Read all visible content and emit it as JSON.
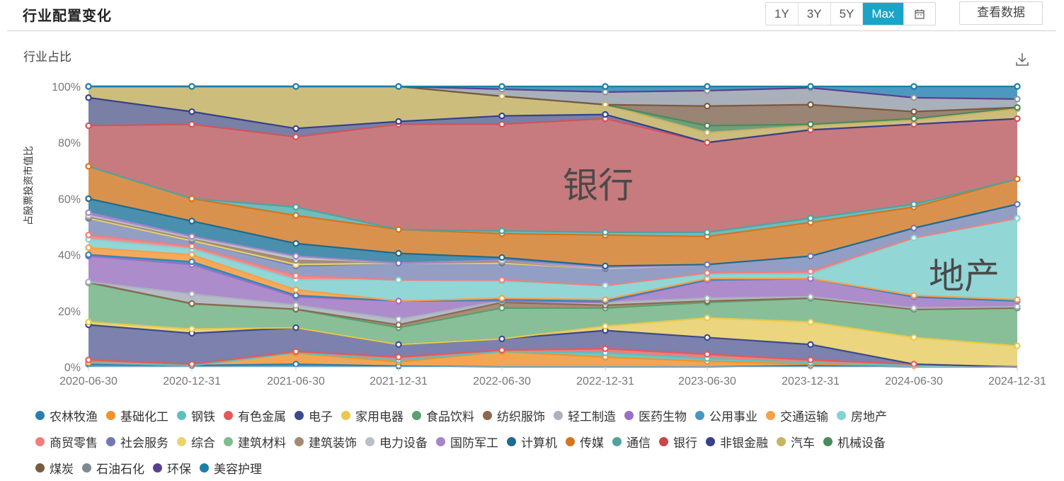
{
  "header": {
    "title": "行业配置变化",
    "range_buttons": [
      "1Y",
      "3Y",
      "5Y",
      "Max"
    ],
    "active_range": "Max",
    "calendar_icon": "calendar-icon",
    "view_data_label": "查看数据"
  },
  "chart_header": {
    "subtitle": "行业占比",
    "download_icon": "download-icon"
  },
  "annotations": {
    "bank": "银行",
    "real_estate": "地产"
  },
  "chart_data": {
    "type": "area",
    "stacked": true,
    "title": "行业占比",
    "xlabel": "",
    "ylabel": "占股票投资市值比",
    "ylim": [
      0,
      100
    ],
    "y_ticks": [
      "0%",
      "20%",
      "40%",
      "60%",
      "80%",
      "100%"
    ],
    "grid": false,
    "legend_position": "bottom",
    "categories": [
      "2020-06-30",
      "2020-12-31",
      "2021-06-30",
      "2021-12-31",
      "2022-06-30",
      "2022-12-31",
      "2023-06-30",
      "2023-12-31",
      "2024-06-30",
      "2024-12-31"
    ],
    "series": [
      {
        "name": "农林牧渔",
        "color": "#2b7fae",
        "values": [
          1.0,
          0.5,
          1.0,
          0.3,
          0.0,
          0.0,
          0.0,
          0.5,
          0.0,
          0.0
        ]
      },
      {
        "name": "基础化工",
        "color": "#f0922c",
        "values": [
          0.5,
          0.0,
          4.0,
          1.5,
          5.5,
          3.5,
          2.0,
          0.5,
          0.5,
          0.0
        ]
      },
      {
        "name": "钢铁",
        "color": "#5dbfc0",
        "values": [
          0.0,
          0.0,
          0.0,
          0.5,
          0.0,
          1.5,
          1.0,
          0.5,
          0.0,
          0.0
        ]
      },
      {
        "name": "有色金属",
        "color": "#e25a5a",
        "values": [
          1.0,
          0.5,
          0.5,
          1.2,
          0.5,
          1.5,
          1.5,
          1.0,
          0.5,
          0.0
        ]
      },
      {
        "name": "电子",
        "color": "#3c4a8a",
        "values": [
          12.0,
          11.0,
          8.5,
          4.5,
          4.0,
          6.5,
          6.0,
          5.5,
          0.0,
          0.0
        ]
      },
      {
        "name": "家用电器",
        "color": "#e8c94a",
        "values": [
          1.0,
          1.5,
          0.0,
          0.0,
          0.0,
          1.5,
          7.0,
          8.0,
          9.5,
          7.5
        ]
      },
      {
        "name": "食品饮料",
        "color": "#5aa06e",
        "values": [
          0.0,
          0.0,
          0.0,
          0.0,
          0.0,
          0.0,
          0.0,
          0.0,
          0.0,
          0.0
        ]
      },
      {
        "name": "纺织服饰",
        "color": "#8b6a4f",
        "values": [
          0.0,
          0.0,
          0.0,
          0.0,
          0.0,
          0.0,
          0.0,
          0.0,
          0.0,
          0.0
        ]
      },
      {
        "name": "轻工制造",
        "color": "#a9b2be",
        "values": [
          0.0,
          0.0,
          0.0,
          0.0,
          0.0,
          0.0,
          0.0,
          0.0,
          0.0,
          0.0
        ]
      },
      {
        "name": "医药生物",
        "color": "#9c6fc4",
        "values": [
          0.0,
          0.0,
          0.0,
          0.0,
          0.0,
          0.0,
          0.0,
          0.0,
          0.0,
          0.0
        ]
      },
      {
        "name": "公用事业",
        "color": "#4a95c2",
        "values": [
          0.0,
          0.0,
          0.0,
          0.0,
          0.0,
          0.0,
          0.0,
          0.0,
          0.0,
          0.0
        ]
      },
      {
        "name": "交通运输",
        "color": "#f5a04a",
        "values": [
          0.0,
          0.0,
          0.0,
          0.0,
          0.0,
          0.0,
          0.0,
          0.0,
          0.0,
          0.0
        ]
      },
      {
        "name": "房地产",
        "color": "#84d2d4",
        "values": [
          0.0,
          0.0,
          0.0,
          0.0,
          0.0,
          0.0,
          0.0,
          0.0,
          0.0,
          0.0
        ]
      },
      {
        "name": "商贸零售",
        "color": "#ee7f7f",
        "values": [
          0.0,
          0.0,
          0.0,
          0.0,
          0.0,
          0.0,
          0.0,
          0.0,
          0.0,
          0.0
        ]
      },
      {
        "name": "社会服务",
        "color": "#7078b0",
        "values": [
          0.0,
          0.0,
          0.0,
          0.0,
          0.0,
          0.0,
          0.0,
          0.0,
          0.0,
          0.0
        ]
      },
      {
        "name": "综合",
        "color": "#e9d36c",
        "values": [
          0.0,
          0.0,
          0.0,
          0.0,
          0.0,
          0.0,
          0.0,
          0.0,
          0.0,
          0.0
        ]
      },
      {
        "name": "建筑材料",
        "color": "#7fbc8e",
        "values": [
          14.0,
          9.0,
          6.5,
          6.0,
          11.0,
          6.5,
          5.5,
          9.0,
          10.5,
          13.5
        ]
      },
      {
        "name": "建筑装饰",
        "color": "#a38a73",
        "values": [
          0.5,
          0.0,
          0.0,
          1.0,
          2.0,
          1.0,
          0.5,
          0.0,
          0.0,
          0.0
        ]
      },
      {
        "name": "电力设备",
        "color": "#b8c0ca",
        "values": [
          0.0,
          3.5,
          1.5,
          2.0,
          0.5,
          1.0,
          1.0,
          0.5,
          0.5,
          0.5
        ]
      },
      {
        "name": "国防军工",
        "color": "#a685c8",
        "values": [
          9.5,
          10.5,
          3.0,
          6.5,
          0.0,
          0.0,
          6.5,
          6.5,
          4.0,
          2.0
        ]
      },
      {
        "name": "计算机",
        "color": "#1f6a8e",
        "values": [
          0.5,
          0.5,
          1.0,
          0.0,
          0.0,
          0.0,
          0.0,
          0.0,
          0.0,
          0.0
        ]
      },
      {
        "name": "传媒",
        "color": "#d4741f",
        "values": [
          2.5,
          2.5,
          1.5,
          0.0,
          1.0,
          1.0,
          0.5,
          0.5,
          1.0,
          0.5
        ]
      },
      {
        "name": "通信",
        "color": "#4fa3a0",
        "values": [
          0.0,
          0.0,
          0.0,
          0.0,
          0.0,
          0.0,
          0.0,
          0.0,
          0.0,
          0.0
        ]
      },
      {
        "name": "银行",
        "color": "#c7797c",
        "values": [
          0.0,
          0.0,
          0.0,
          0.0,
          0.0,
          0.0,
          0.0,
          0.0,
          0.0,
          0.0
        ]
      },
      {
        "name": "非银金融",
        "color": "#35418a",
        "values": [
          0.0,
          0.0,
          0.0,
          0.0,
          0.0,
          0.0,
          0.0,
          0.0,
          0.0,
          0.0
        ]
      },
      {
        "name": "汽车",
        "color": "#c9b364",
        "values": [
          0.0,
          0.0,
          0.0,
          0.0,
          0.0,
          0.0,
          0.0,
          0.0,
          0.0,
          0.0
        ]
      },
      {
        "name": "机械设备",
        "color": "#4a8a5c",
        "values": [
          0.0,
          0.0,
          0.0,
          0.0,
          0.0,
          0.0,
          0.0,
          0.0,
          0.0,
          0.0
        ]
      },
      {
        "name": "煤炭",
        "color": "#7a5a3e",
        "values": [
          0.0,
          0.0,
          0.0,
          0.0,
          0.0,
          0.0,
          0.0,
          0.0,
          0.0,
          0.0
        ]
      },
      {
        "name": "石油石化",
        "color": "#7e8a90",
        "values": [
          0.0,
          0.0,
          0.0,
          0.0,
          0.0,
          0.0,
          0.0,
          0.0,
          0.0,
          0.0
        ]
      },
      {
        "name": "环保",
        "color": "#5b3f8f",
        "values": [
          0.0,
          0.0,
          0.0,
          0.0,
          0.0,
          0.0,
          0.0,
          0.0,
          0.0,
          0.0
        ]
      },
      {
        "name": "美容护理",
        "color": "#1d7fa8",
        "values": [
          0.0,
          0.0,
          0.0,
          0.0,
          0.0,
          0.0,
          0.0,
          0.0,
          0.0,
          0.0
        ]
      }
    ],
    "visual_layers": [
      {
        "name": "农林牧渔",
        "fill": "#4b9ac0",
        "line": "#2b7fae",
        "top": [
          1.0,
          0.5,
          1.0,
          0.3,
          0.0,
          0.0,
          0.0,
          0.5,
          0.0,
          0.0
        ]
      },
      {
        "name": "基础化工",
        "fill": "#f4a553",
        "line": "#f0922c",
        "top": [
          1.5,
          0.5,
          5.0,
          1.8,
          5.5,
          3.5,
          2.0,
          1.0,
          0.5,
          0.0
        ]
      },
      {
        "name": "钢铁",
        "fill": "#6ec7c6",
        "line": "#5dbfc0",
        "top": [
          1.5,
          0.5,
          5.0,
          2.5,
          5.5,
          5.0,
          3.0,
          1.5,
          0.5,
          0.0
        ]
      },
      {
        "name": "有色金属",
        "fill": "#e98080",
        "line": "#e25a5a",
        "top": [
          2.5,
          1.0,
          5.5,
          3.5,
          6.0,
          6.5,
          4.5,
          2.5,
          1.0,
          0.0
        ]
      },
      {
        "name": "电子",
        "fill": "#7c81ad",
        "line": "#3c4a8a",
        "top": [
          15.0,
          12.0,
          14.0,
          8.0,
          10.0,
          13.0,
          10.5,
          8.0,
          1.0,
          0.0
        ]
      },
      {
        "name": "家用电器",
        "fill": "#ebd57f",
        "line": "#e8c94a",
        "top": [
          16.0,
          13.5,
          14.0,
          8.0,
          10.0,
          14.5,
          17.5,
          16.0,
          10.5,
          7.5
        ]
      },
      {
        "name": "建筑材料",
        "fill": "#88bf98",
        "line": "#5aa06e",
        "top": [
          30.0,
          22.5,
          20.5,
          14.0,
          21.0,
          21.0,
          23.0,
          24.5,
          20.5,
          21.0
        ]
      },
      {
        "name": "建筑装饰",
        "fill": "#a88e79",
        "line": "#8b6a4f",
        "top": [
          30.2,
          22.6,
          20.6,
          15.0,
          23.0,
          22.0,
          23.5,
          24.5,
          20.5,
          21.0
        ]
      },
      {
        "name": "电力设备",
        "fill": "#b5bcc6",
        "line": "#a9b2be",
        "top": [
          30.3,
          26.0,
          22.0,
          17.0,
          23.5,
          23.0,
          24.5,
          25.0,
          21.0,
          21.5
        ]
      },
      {
        "name": "医药生物",
        "fill": "#ad8ccb",
        "line": "#9c6fc4",
        "top": [
          39.5,
          36.5,
          25.0,
          23.5,
          23.5,
          23.0,
          31.0,
          31.5,
          25.0,
          23.5
        ]
      },
      {
        "name": "公用事业",
        "fill": "#4a95c2",
        "line": "#2f86b8",
        "top": [
          40.0,
          37.5,
          25.5,
          23.5,
          24.0,
          23.5,
          31.0,
          31.5,
          25.0,
          23.5
        ]
      },
      {
        "name": "交通运输",
        "fill": "#f6a95c",
        "line": "#f5a04a",
        "top": [
          42.5,
          40.0,
          27.5,
          23.5,
          24.5,
          24.0,
          31.5,
          31.5,
          25.5,
          24.0
        ]
      },
      {
        "name": "房地产",
        "fill": "#93d6d6",
        "line": "#84d2d4",
        "top": [
          45.5,
          42.0,
          31.0,
          31.0,
          30.5,
          29.0,
          33.0,
          33.0,
          46.0,
          53.0
        ]
      },
      {
        "name": "商贸零售",
        "fill": "#ee8f8f",
        "line": "#ee7f7f",
        "top": [
          47.0,
          43.0,
          32.5,
          31.0,
          31.0,
          29.0,
          33.5,
          34.0,
          46.0,
          53.0
        ]
      },
      {
        "name": "社会服务",
        "fill": "#939ec4",
        "line": "#7078b0",
        "top": [
          53.0,
          45.0,
          36.0,
          37.0,
          37.0,
          35.0,
          36.5,
          39.5,
          49.5,
          58.0
        ]
      },
      {
        "name": "综合",
        "fill": "#e9d36c",
        "line": "#e9d36c",
        "top": [
          53.0,
          45.0,
          36.5,
          37.0,
          37.0,
          35.0,
          36.5,
          39.5,
          49.5,
          58.0
        ]
      },
      {
        "name": "建筑装饰2",
        "fill": "#a88e79",
        "line": "#a38a73",
        "top": [
          53.5,
          45.5,
          38.0,
          37.0,
          37.5,
          35.0,
          36.5,
          39.5,
          49.5,
          58.0
        ]
      },
      {
        "name": "电力设备2",
        "fill": "#c8ccd2",
        "line": "#b8c0ca",
        "top": [
          54.0,
          46.0,
          39.0,
          37.0,
          38.0,
          35.0,
          36.5,
          39.5,
          49.5,
          58.0
        ]
      },
      {
        "name": "国防军工",
        "fill": "#a685c8",
        "line": "#a685c8",
        "top": [
          55.0,
          46.5,
          39.5,
          37.0,
          38.0,
          35.5,
          36.5,
          39.5,
          49.5,
          58.0
        ]
      },
      {
        "name": "计算机",
        "fill": "#4b8fae",
        "line": "#1f6a8e",
        "top": [
          60.0,
          52.0,
          44.0,
          40.5,
          39.0,
          36.0,
          36.5,
          39.5,
          49.5,
          58.0
        ]
      },
      {
        "name": "传媒",
        "fill": "#d9924e",
        "line": "#d4741f",
        "top": [
          71.5,
          60.0,
          54.0,
          49.0,
          47.5,
          47.0,
          46.5,
          51.5,
          57.0,
          67.0
        ]
      },
      {
        "name": "通信",
        "fill": "#6fbcbc",
        "line": "#4fa3a0",
        "top": [
          71.5,
          60.0,
          57.0,
          49.0,
          48.5,
          48.0,
          48.0,
          53.0,
          58.0,
          67.0
        ]
      },
      {
        "name": "银行",
        "fill": "#c77b7e",
        "line": "#d0555b",
        "top": [
          86.0,
          86.5,
          82.0,
          86.5,
          86.5,
          88.5,
          80.0,
          84.5,
          86.5,
          88.5
        ]
      },
      {
        "name": "非银金融",
        "fill": "#7a7fa6",
        "line": "#35418a",
        "top": [
          96.0,
          91.0,
          85.0,
          87.5,
          89.5,
          90.0,
          80.0,
          84.5,
          86.5,
          88.5
        ]
      },
      {
        "name": "汽车",
        "fill": "#cdbd7d",
        "line": "#c9b364",
        "top": [
          100.0,
          100.0,
          100.0,
          100.0,
          96.5,
          93.5,
          83.5,
          86.0,
          88.0,
          92.0
        ]
      },
      {
        "name": "机械设备",
        "fill": "#6f9e7c",
        "line": "#4a8a5c",
        "top": [
          100.0,
          100.0,
          100.0,
          100.0,
          96.5,
          93.5,
          86.0,
          86.5,
          88.5,
          92.5
        ]
      },
      {
        "name": "煤炭",
        "fill": "#9a8474",
        "line": "#7a5a3e",
        "top": [
          100.0,
          100.0,
          100.0,
          100.0,
          96.5,
          93.5,
          93.0,
          93.5,
          91.0,
          92.5
        ]
      },
      {
        "name": "石油石化",
        "fill": "#a9b0ba",
        "line": "#8d969e",
        "top": [
          100.0,
          100.0,
          100.0,
          100.0,
          99.0,
          98.0,
          98.5,
          99.5,
          96.0,
          95.5
        ]
      },
      {
        "name": "环保",
        "fill": "#8a73b5",
        "line": "#5b3f8f",
        "top": [
          100.0,
          100.0,
          100.0,
          100.0,
          99.0,
          98.0,
          98.5,
          99.5,
          96.0,
          95.5
        ]
      },
      {
        "name": "美容护理",
        "fill": "#4c98c0",
        "line": "#1d7fa8",
        "top": [
          100.0,
          100.0,
          100.0,
          100.0,
          100.0,
          100.0,
          100.0,
          100.0,
          100.0,
          100.0
        ]
      }
    ]
  },
  "legend": {
    "rows": [
      [
        {
          "label": "农林牧渔",
          "color": "#2b7fae"
        },
        {
          "label": "基础化工",
          "color": "#f0922c"
        },
        {
          "label": "钢铁",
          "color": "#5dbfc0"
        },
        {
          "label": "有色金属",
          "color": "#e25a5a"
        },
        {
          "label": "电子",
          "color": "#3c4a8a"
        },
        {
          "label": "家用电器",
          "color": "#e8c94a"
        },
        {
          "label": "食品饮料",
          "color": "#5aa06e"
        },
        {
          "label": "纺织服饰",
          "color": "#8b6a4f"
        },
        {
          "label": "轻工制造",
          "color": "#a9b2be"
        },
        {
          "label": "医药生物",
          "color": "#9c6fc4"
        },
        {
          "label": "公用事业",
          "color": "#4a95c2"
        },
        {
          "label": "交通运输",
          "color": "#f5a04a"
        },
        {
          "label": "房地产",
          "color": "#84d2d4"
        }
      ],
      [
        {
          "label": "商贸零售",
          "color": "#ee7f7f"
        },
        {
          "label": "社会服务",
          "color": "#7078b0"
        },
        {
          "label": "综合",
          "color": "#e9d36c"
        },
        {
          "label": "建筑材料",
          "color": "#7fbc8e"
        },
        {
          "label": "建筑装饰",
          "color": "#a38a73"
        },
        {
          "label": "电力设备",
          "color": "#b8c0ca"
        },
        {
          "label": "国防军工",
          "color": "#a685c8"
        },
        {
          "label": "计算机",
          "color": "#1f6a8e"
        },
        {
          "label": "传媒",
          "color": "#d4741f"
        },
        {
          "label": "通信",
          "color": "#4fa3a0"
        },
        {
          "label": "银行",
          "color": "#c9464d"
        },
        {
          "label": "非银金融",
          "color": "#35418a"
        },
        {
          "label": "汽车",
          "color": "#c9b364"
        },
        {
          "label": "机械设备",
          "color": "#4a8a5c"
        }
      ],
      [
        {
          "label": "煤炭",
          "color": "#7a5a3e"
        },
        {
          "label": "石油石化",
          "color": "#7e8a90"
        },
        {
          "label": "环保",
          "color": "#5b3f8f"
        },
        {
          "label": "美容护理",
          "color": "#1d7fa8"
        }
      ]
    ]
  }
}
